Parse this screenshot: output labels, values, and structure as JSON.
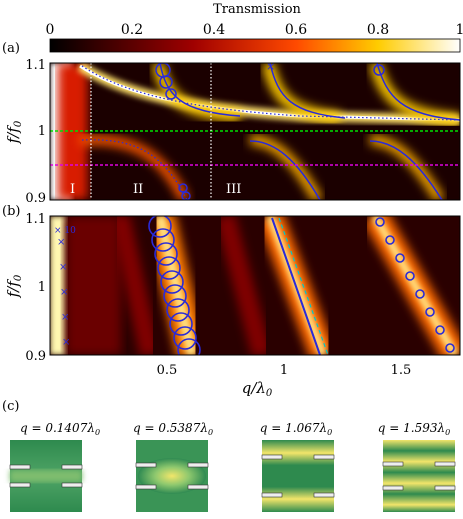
{
  "colorbar": {
    "label": "Transmission",
    "ticks": [
      "0",
      "0.2",
      "0.4",
      "0.6",
      "0.8",
      "1"
    ]
  },
  "panels": [
    {
      "label": "(a)"
    },
    {
      "label": "(b)"
    },
    {
      "label": "(c)"
    }
  ],
  "axis": {
    "ylabel_top": "f/f",
    "ylabel_sub": "0",
    "xlabel_top": "q/λ",
    "xlabel_sub": "0",
    "a_yticks": [
      "1.1",
      "1",
      "0.9"
    ],
    "b_yticks": [
      "1.1",
      "1",
      "0.9"
    ],
    "xticks": [
      "0.5",
      "1",
      "1.5"
    ]
  },
  "regions": [
    "I",
    "II",
    "III"
  ],
  "panel_b_inset": "× 10",
  "field_maps": [
    {
      "q_label": "q = 0.1407λ",
      "sub": "0"
    },
    {
      "q_label": "q = 0.5387λ",
      "sub": "0"
    },
    {
      "q_label": "q = 1.067λ",
      "sub": "0"
    },
    {
      "q_label": "q = 1.593λ",
      "sub": "0"
    }
  ],
  "chart_data": {
    "type": "heatmap",
    "colorbar_range": [
      0,
      1
    ],
    "xlim": [
      0,
      1.75
    ],
    "ylim": [
      0.9,
      1.1
    ],
    "vertical_dotted_lines_q": [
      0.14,
      0.68
    ],
    "horizontal_lines_f": [
      {
        "f": 1.0,
        "color": "#00e000"
      },
      {
        "f": 0.95,
        "color": "#e000e0"
      }
    ],
    "panel_a_bands": [
      {
        "q_upper_start": 0.47,
        "q_lower_start": 0.3
      },
      {
        "q_upper_start": 0.93,
        "q_lower_start": 0.97
      },
      {
        "q_upper_start": 1.38,
        "q_lower_start": 1.47
      }
    ],
    "panel_b_bands": [
      {
        "q_at_f110": 0.47,
        "q_at_f090": 0.57
      },
      {
        "q_at_f110": 0.94,
        "q_at_f090": 1.17
      },
      {
        "q_at_f110": 1.38,
        "q_at_f090": 1.73
      }
    ]
  }
}
